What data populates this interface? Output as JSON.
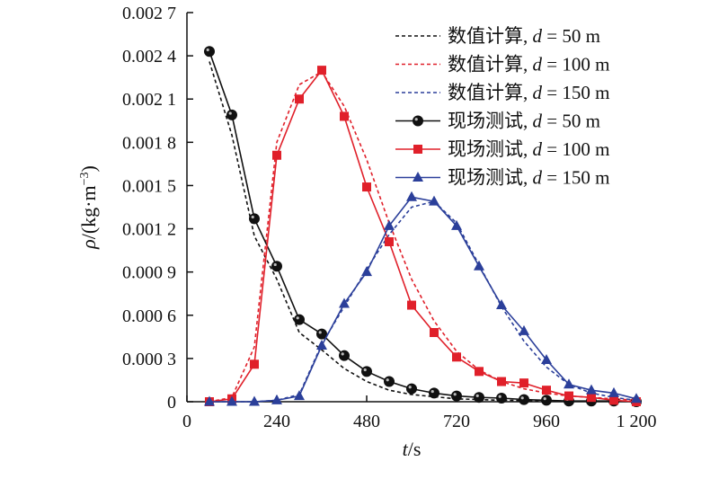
{
  "chart_data": {
    "type": "line",
    "xlabel": "t/s",
    "xlabel_parts": {
      "var": "t",
      "unit": "/s"
    },
    "ylabel": "ρ/(kg·m⁻³)",
    "ylabel_parts": {
      "var": "ρ",
      "open": "/(kg·m",
      "sup": "−3",
      "close": ")"
    },
    "xlim": [
      0,
      1200
    ],
    "ylim": [
      0,
      0.0027
    ],
    "x_ticks": [
      0,
      240,
      480,
      720,
      960,
      1200
    ],
    "x_tick_labels": [
      "0",
      "240",
      "480",
      "720",
      "960",
      "1 200"
    ],
    "y_ticks": [
      0,
      0.0003,
      0.0006,
      0.0009,
      0.0012,
      0.0015,
      0.0018,
      0.0021,
      0.0024,
      0.0027
    ],
    "y_tick_labels": [
      "0",
      "0.000 3",
      "0.000 6",
      "0.000 9",
      "0.001 2",
      "0.001 5",
      "0.001 8",
      "0.002 1",
      "0.002 4",
      "0.002 7"
    ],
    "grid": false,
    "legend_position": "top-right",
    "colors": {
      "black": "#111111",
      "red": "#e0202a",
      "blue": "#2b3f9a"
    },
    "series": [
      {
        "name": "数值计算, d = 50 m",
        "label_prefix": "数值计算, ",
        "label_var": "d",
        "label_suffix": " = 50 m",
        "style": "dashed",
        "color": "black",
        "marker": "none",
        "x": [
          60,
          120,
          180,
          240,
          300,
          360,
          420,
          480,
          540,
          600,
          660,
          720,
          780,
          840,
          900,
          960,
          1020,
          1080,
          1140,
          1200
        ],
        "y": [
          0.00236,
          0.00185,
          0.00115,
          0.00085,
          0.00048,
          0.00036,
          0.00023,
          0.00014,
          8e-05,
          5e-05,
          3.5e-05,
          2e-05,
          1.5e-05,
          1e-05,
          8e-06,
          5e-06,
          4e-06,
          3e-06,
          2e-06,
          1e-06
        ]
      },
      {
        "name": "数值计算, d = 100 m",
        "label_prefix": "数值计算, ",
        "label_var": "d",
        "label_suffix": " = 100 m",
        "style": "dashed",
        "color": "red",
        "marker": "none",
        "x": [
          60,
          120,
          180,
          240,
          300,
          360,
          420,
          480,
          540,
          600,
          660,
          720,
          780,
          840,
          900,
          960,
          1020,
          1080,
          1140,
          1200
        ],
        "y": [
          0,
          3e-05,
          0.00038,
          0.0018,
          0.0022,
          0.00229,
          0.00205,
          0.00168,
          0.00124,
          0.00085,
          0.00056,
          0.00035,
          0.00022,
          0.00014,
          9e-05,
          6e-05,
          4e-05,
          3e-05,
          2e-05,
          1e-05
        ]
      },
      {
        "name": "数值计算, d = 150 m",
        "label_prefix": "数值计算, ",
        "label_var": "d",
        "label_suffix": " = 150 m",
        "style": "dashed",
        "color": "blue",
        "marker": "none",
        "x": [
          60,
          120,
          180,
          240,
          300,
          360,
          420,
          480,
          540,
          600,
          660,
          720,
          780,
          840,
          900,
          960,
          1020,
          1080,
          1140,
          1200
        ],
        "y": [
          0,
          0,
          0,
          1e-05,
          5e-05,
          0.0004,
          0.00066,
          0.00092,
          0.00116,
          0.00135,
          0.00139,
          0.00124,
          0.00095,
          0.00066,
          0.00042,
          0.00024,
          0.00012,
          6e-05,
          3e-05,
          1e-05
        ]
      },
      {
        "name": "现场测试, d = 50 m",
        "label_prefix": "现场测试, ",
        "label_var": "d",
        "label_suffix": " = 50 m",
        "style": "solid",
        "color": "black",
        "marker": "ball",
        "x": [
          60,
          120,
          180,
          240,
          300,
          360,
          420,
          480,
          540,
          600,
          660,
          720,
          780,
          840,
          900,
          960,
          1020,
          1080,
          1140,
          1200
        ],
        "y": [
          0.00243,
          0.00199,
          0.00127,
          0.00094,
          0.00057,
          0.00047,
          0.00032,
          0.00021,
          0.00014,
          9e-05,
          6e-05,
          4e-05,
          3e-05,
          2.5e-05,
          1.5e-05,
          1e-05,
          5e-06,
          5e-06,
          5e-06,
          0
        ]
      },
      {
        "name": "现场测试, d = 100 m",
        "label_prefix": "现场测试, ",
        "label_var": "d",
        "label_suffix": " = 100 m",
        "style": "solid",
        "color": "red",
        "marker": "square",
        "x": [
          60,
          120,
          180,
          240,
          300,
          360,
          420,
          480,
          540,
          600,
          660,
          720,
          780,
          840,
          900,
          960,
          1020,
          1080,
          1140,
          1200
        ],
        "y": [
          0,
          2e-05,
          0.00026,
          0.00171,
          0.0021,
          0.0023,
          0.00198,
          0.00149,
          0.00111,
          0.00067,
          0.00048,
          0.00031,
          0.00021,
          0.00014,
          0.00013,
          8e-05,
          4e-05,
          3e-05,
          1e-05,
          0
        ]
      },
      {
        "name": "现场测试, d = 150 m",
        "label_prefix": "现场测试, ",
        "label_var": "d",
        "label_suffix": " = 150 m",
        "style": "solid",
        "color": "blue",
        "marker": "triangle",
        "x": [
          60,
          120,
          180,
          240,
          300,
          360,
          420,
          480,
          540,
          600,
          660,
          720,
          780,
          840,
          900,
          960,
          1020,
          1080,
          1140,
          1200
        ],
        "y": [
          0,
          0,
          0,
          1e-05,
          4e-05,
          0.00039,
          0.00068,
          0.0009,
          0.00122,
          0.00142,
          0.00139,
          0.00122,
          0.00094,
          0.00067,
          0.00049,
          0.00029,
          0.00012,
          8e-05,
          6e-05,
          2e-05
        ]
      }
    ]
  }
}
